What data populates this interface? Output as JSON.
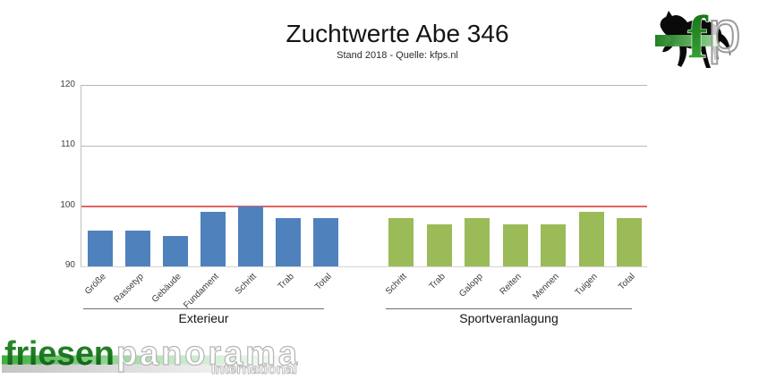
{
  "chart_data": {
    "type": "bar",
    "title": "Zuchtwerte Abe 346",
    "subtitle": "Stand 2018 - Quelle: kfps.nl",
    "ylabel": "",
    "xlabel": "",
    "ylim": [
      90,
      120
    ],
    "yticks": [
      90,
      100,
      110,
      120
    ],
    "grid": "horizontal",
    "legend": "none",
    "reference_line": {
      "value": 100,
      "color": "#e06666"
    },
    "palette": {
      "gridline": "#b7b7b7",
      "baseline": "#d4d4d4",
      "axis_text": "#3a3a3a",
      "exterieur_bar": "#4f81bd",
      "sport_bar": "#9bbb59"
    },
    "groups": [
      {
        "name": "Exterieur",
        "color": "#4f81bd",
        "categories": [
          "Größe",
          "Rassetyp",
          "Gebäude",
          "Fundament",
          "Schritt",
          "Trab",
          "Total"
        ],
        "values": [
          96,
          96,
          95,
          99,
          100,
          98,
          98
        ]
      },
      {
        "name": "Sportveranlagung",
        "color": "#9bbb59",
        "categories": [
          "Schritt",
          "Trab",
          "Galopp",
          "Reiten",
          "Mennen",
          "Tuigen",
          "Total"
        ],
        "values": [
          98,
          97,
          98,
          97,
          97,
          99,
          98
        ]
      }
    ]
  },
  "logos": {
    "fp": {
      "letter_f": "f",
      "letter_p": "p",
      "green_dark": "#0f6b0f",
      "green_light": "#9fdf9f"
    },
    "friesenpanorama": {
      "part1": "friesen",
      "part2": "panorama",
      "subtitle": "International",
      "green": "#1d7a1d"
    }
  }
}
